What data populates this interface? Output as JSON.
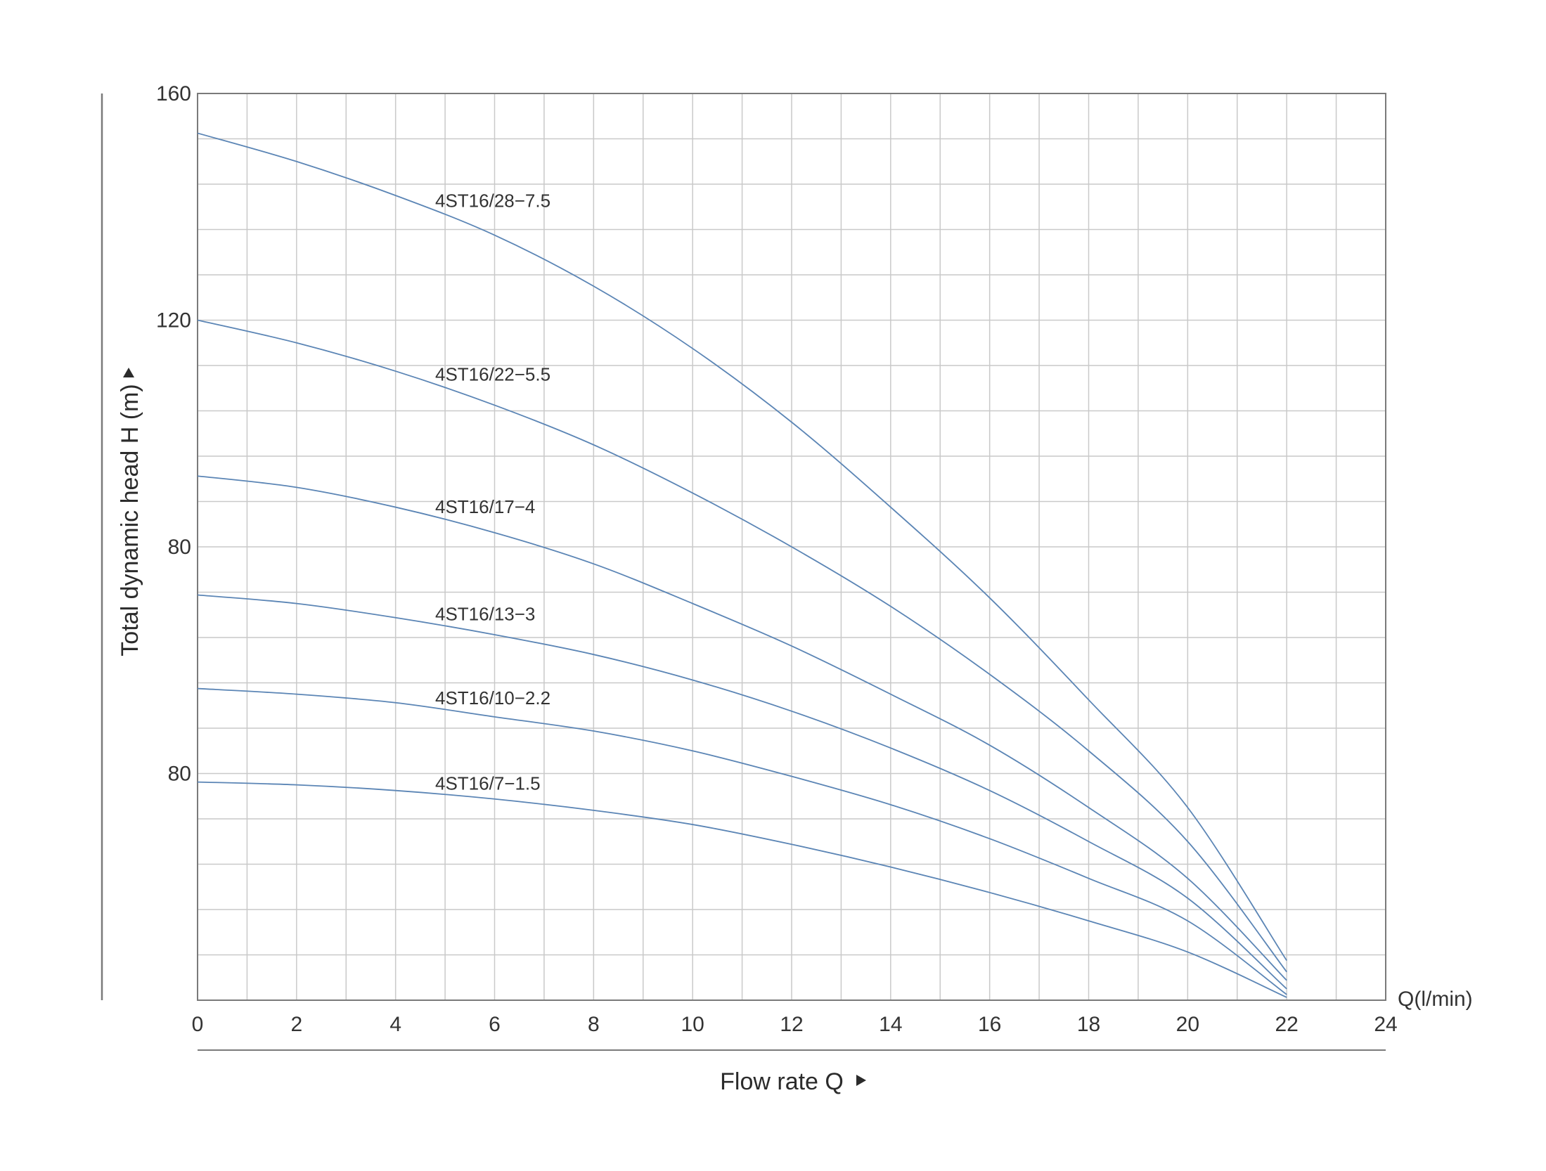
{
  "chart_data": {
    "type": "line",
    "title": "",
    "xlabel": "Flow rate Q",
    "x_unit_label": "Q(l/min)",
    "ylabel": "Total dynamic head H (m)",
    "xlim": [
      0,
      24
    ],
    "ylim": [
      0,
      160
    ],
    "x_ticks": [
      "0",
      "2",
      "4",
      "6",
      "8",
      "10",
      "12",
      "14",
      "16",
      "18",
      "20",
      "22",
      "24"
    ],
    "y_tick_labels": [
      "160",
      "120",
      "80",
      "80"
    ],
    "grid": true,
    "series": [
      {
        "name": "4ST16/28-7.5",
        "label_text": "4ST16/28−7.5",
        "color": "#5b85b5",
        "x": [
          0,
          2,
          4,
          6,
          8,
          10,
          12,
          14,
          16,
          18,
          20,
          22
        ],
        "y": [
          153,
          148,
          142,
          135,
          126,
          115,
          102,
          87,
          71,
          53,
          34,
          7
        ]
      },
      {
        "name": "4ST16/22-5.5",
        "label_text": "4ST16/22−5.5",
        "color": "#5b85b5",
        "x": [
          0,
          2,
          4,
          6,
          8,
          10,
          12,
          14,
          16,
          18,
          20,
          22
        ],
        "y": [
          120,
          116,
          111,
          105,
          98,
          89.5,
          80,
          69.5,
          57.5,
          44,
          28,
          5
        ]
      },
      {
        "name": "4ST16/17-4",
        "label_text": "4ST16/17−4",
        "color": "#5b85b5",
        "x": [
          0,
          2,
          4,
          6,
          8,
          10,
          12,
          14,
          16,
          18,
          20,
          22
        ],
        "y": [
          92.5,
          90.5,
          87,
          82.5,
          77,
          70,
          62.5,
          54,
          45,
          34,
          21.5,
          3.5
        ]
      },
      {
        "name": "4ST16/13-3",
        "label_text": "4ST16/13−3",
        "color": "#5b85b5",
        "x": [
          0,
          2,
          4,
          6,
          8,
          10,
          12,
          14,
          16,
          18,
          20,
          22
        ],
        "y": [
          71.5,
          70,
          67.5,
          64.5,
          61,
          56.5,
          51,
          44.5,
          37,
          28,
          18,
          2
        ]
      },
      {
        "name": "4ST16/10-2.2",
        "label_text": "4ST16/10−2.2",
        "color": "#5b85b5",
        "x": [
          0,
          2,
          4,
          6,
          8,
          10,
          12,
          14,
          16,
          18,
          20,
          22
        ],
        "y": [
          55,
          54,
          52.5,
          50,
          47.5,
          44,
          39.5,
          34.5,
          28.5,
          21.5,
          14,
          1
        ]
      },
      {
        "name": "4ST16/7-1.5",
        "label_text": "4ST16/7−1.5",
        "color": "#5b85b5",
        "x": [
          0,
          2,
          4,
          6,
          8,
          10,
          12,
          14,
          16,
          18,
          20,
          22
        ],
        "y": [
          38.5,
          38,
          37,
          35.5,
          33.5,
          31,
          27.5,
          23.5,
          19,
          14,
          8.5,
          0.5
        ]
      }
    ]
  }
}
